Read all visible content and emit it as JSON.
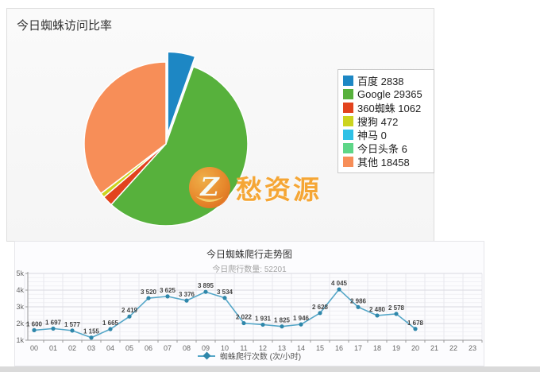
{
  "pie_panel": {
    "title": "今日蜘蛛访问比率",
    "watermark_text": "愁资源",
    "watermark_color": "#f5a22b"
  },
  "line_panel": {
    "title": "今日蜘蛛爬行走势图",
    "subtitle": "今日爬行数量: 52201",
    "legend_text": "蜘蛛爬行次数 (次/小时)"
  },
  "chart_data": [
    {
      "type": "pie",
      "title": "今日蜘蛛访问比率",
      "legend_position": "right",
      "start_angle_deg": 0,
      "slices": [
        {
          "label": "百度",
          "value": 2838,
          "color": "#1d87c4",
          "exploded": true
        },
        {
          "label": "Google",
          "value": 29365,
          "color": "#57b13c",
          "exploded": false
        },
        {
          "label": "360蜘蛛",
          "value": 1062,
          "color": "#e2431e",
          "exploded": false
        },
        {
          "label": "搜狗",
          "value": 472,
          "color": "#ccd41f",
          "exploded": false
        },
        {
          "label": "神马",
          "value": 0,
          "color": "#2fc1e6",
          "exploded": false
        },
        {
          "label": "今日头条",
          "value": 6,
          "color": "#5ed687",
          "exploded": false
        },
        {
          "label": "其他",
          "value": 18458,
          "color": "#f78e58",
          "exploded": false
        }
      ],
      "total": 52201
    },
    {
      "type": "line",
      "title": "今日蜘蛛爬行走势图",
      "subtitle": "今日爬行数量: 52201",
      "x": [
        "00",
        "01",
        "02",
        "03",
        "04",
        "05",
        "06",
        "07",
        "08",
        "09",
        "10",
        "11",
        "12",
        "13",
        "14",
        "15",
        "16",
        "17",
        "18",
        "19",
        "20",
        "21",
        "22",
        "23"
      ],
      "series": [
        {
          "name": "蜘蛛爬行次数 (次/小时)",
          "values": [
            1600,
            1697,
            1577,
            1155,
            1665,
            2419,
            3520,
            3625,
            3376,
            3895,
            3534,
            2022,
            1931,
            1825,
            1946,
            2628,
            4045,
            2986,
            2480,
            2578,
            1678,
            null,
            null,
            null
          ]
        }
      ],
      "ylim": [
        1000,
        5000
      ],
      "yticks": [
        "1k",
        "2k",
        "3k",
        "4k",
        "5k"
      ],
      "grid": true,
      "legend_position": "bottom",
      "line_color": "#56a7c8",
      "marker_color": "#2f87aa"
    }
  ]
}
